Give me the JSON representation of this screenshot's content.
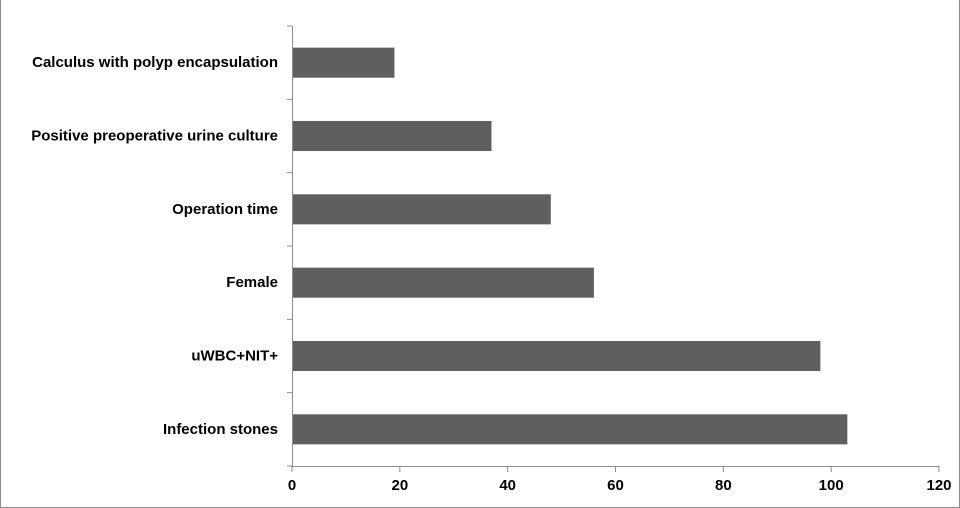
{
  "chart_data": {
    "type": "bar",
    "orientation": "horizontal",
    "categories": [
      "Calculus with polyp encapsulation",
      "Positive preoperative urine culture",
      "Operation time",
      "Female",
      "uWBC+NIT+",
      "Infection stones"
    ],
    "values": [
      19,
      37,
      48,
      56,
      98,
      103
    ],
    "xlim": [
      0,
      120
    ],
    "xticks": [
      "0",
      "20",
      "40",
      "60",
      "80",
      "100",
      "120"
    ],
    "title": "",
    "xlabel": "",
    "ylabel": "",
    "grid": false,
    "legend": "none",
    "bar_color": "#5f5f5f",
    "axis_color": "#8c8c8c"
  }
}
